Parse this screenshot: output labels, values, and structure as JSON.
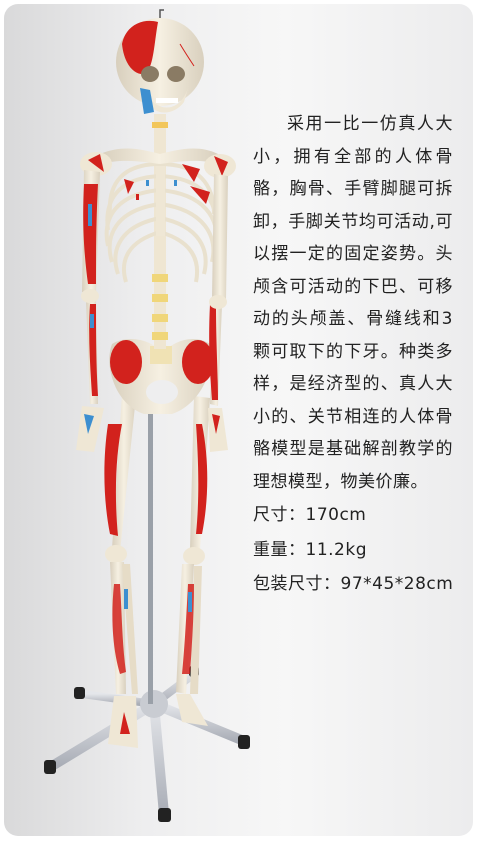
{
  "description": "采用一比一仿真人大小，拥有全部的人体骨骼，胸骨、手臂脚腿可拆卸，手脚关节均可活动,可以摆一定的固定姿势。头颅含可活动的下巴、可移动的头颅盖、骨缝线和3颗可取下的下牙。种类多样，是经济型的、真人大小的、关节相连的人体骨骼模型是基础解剖教学的理想模型，物美价廉。",
  "specs": [
    {
      "label": "尺寸：",
      "value": "170cm"
    },
    {
      "label": "重量：",
      "value": "11.2kg"
    },
    {
      "label": "包装尺寸：",
      "value": "97*45*28cm"
    }
  ],
  "colors": {
    "background": "#eeeeef",
    "bone": "#f3ecdc",
    "muscle_red": "#d2221d",
    "muscle_blue": "#3d8fd0",
    "stand_metal": "#b8bcc4",
    "text": "#222222"
  }
}
